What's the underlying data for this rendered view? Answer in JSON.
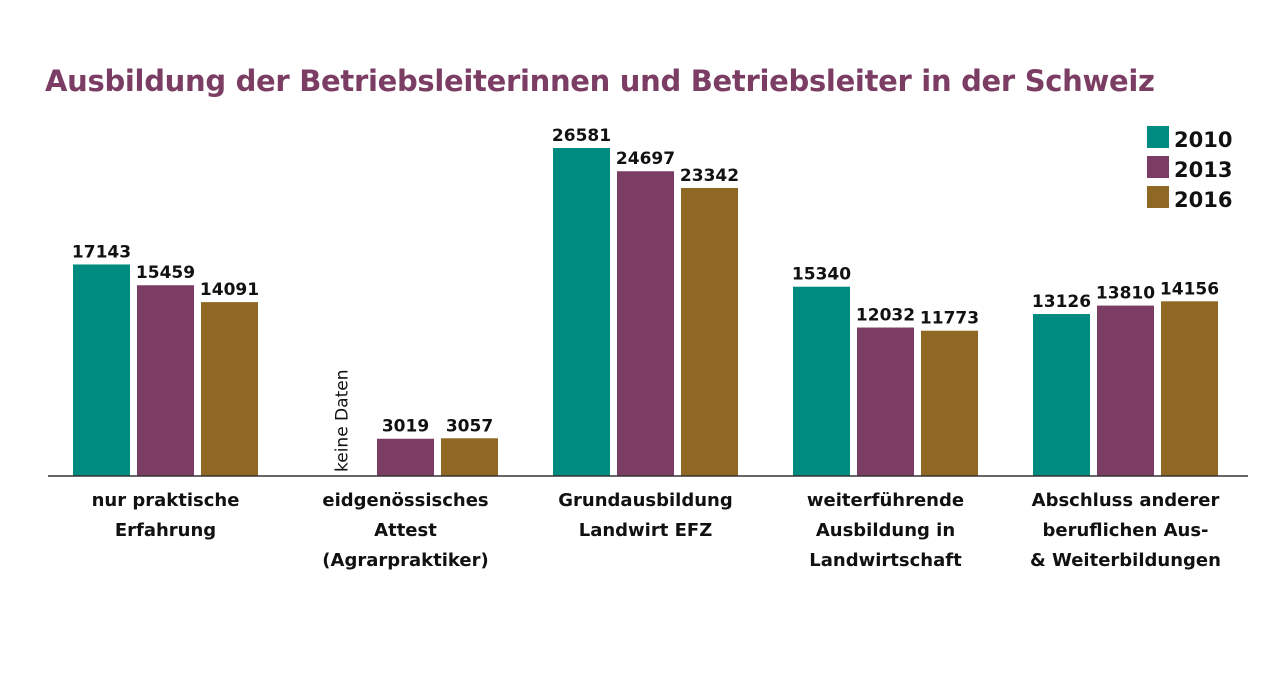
{
  "chart_data": {
    "type": "bar",
    "title": "Ausbildung der Betriebsleiterinnen und Betriebsleiter in der Schweiz",
    "categories": [
      [
        "nur praktische",
        "Erfahrung"
      ],
      [
        "eidgenössisches",
        "Attest",
        "(Agrarpraktiker)"
      ],
      [
        "Grundausbildung",
        "Landwirt EFZ"
      ],
      [
        "weiterführende",
        "Ausbildung in",
        "Landwirtschaft"
      ],
      [
        "Abschluss anderer",
        "beruflichen Aus-",
        "& Weiterbildungen"
      ]
    ],
    "series": [
      {
        "name": "2010",
        "color": "#008b80",
        "values": [
          17143,
          null,
          26581,
          15340,
          13126
        ]
      },
      {
        "name": "2013",
        "color": "#7b3d63",
        "values": [
          15459,
          3019,
          24697,
          12032,
          13810
        ]
      },
      {
        "name": "2016",
        "color": "#8f6823",
        "values": [
          14091,
          3057,
          23342,
          11773,
          14156
        ]
      }
    ],
    "missing_label": "keine Daten",
    "ylim": [
      0,
      26581
    ],
    "grid": false,
    "legend_position": "top-right",
    "xlabel": "",
    "ylabel": ""
  }
}
